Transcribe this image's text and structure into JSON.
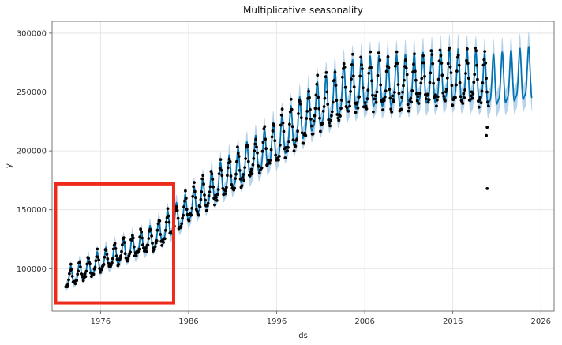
{
  "chart_data": {
    "type": "line",
    "title": "Multiplicative seasonality",
    "xlabel": "ds",
    "ylabel": "y",
    "xlim": [
      1970.5,
      2027.5
    ],
    "ylim": [
      64000,
      310000
    ],
    "x_ticks": [
      1976,
      1986,
      1996,
      2006,
      2016,
      2026
    ],
    "y_ticks": [
      100000,
      150000,
      200000,
      250000,
      300000
    ],
    "y_tick_labels": [
      "100000",
      "150000",
      "200000",
      "250000",
      "300000"
    ],
    "grid": true,
    "trend_knots": [
      [
        1972,
        90000
      ],
      [
        1976,
        105000
      ],
      [
        1982,
        125000
      ],
      [
        1986,
        150000
      ],
      [
        1990,
        175000
      ],
      [
        1996,
        205000
      ],
      [
        2000,
        232000
      ],
      [
        2004,
        250000
      ],
      [
        2006,
        254000
      ],
      [
        2010,
        255000
      ],
      [
        2014,
        258000
      ],
      [
        2016,
        260000
      ],
      [
        2019,
        258000
      ],
      [
        2020,
        255000
      ],
      [
        2025,
        262000
      ]
    ],
    "seasonal_amplitude": 0.08,
    "interval_half_width": 0.045,
    "observation_end": 2020.1,
    "forecast_end": 2025,
    "outliers": [
      [
        2019.9,
        168000
      ],
      [
        2019.8,
        213000
      ],
      [
        2019.9,
        220000
      ]
    ],
    "series": [
      {
        "name": "observations",
        "kind": "points"
      },
      {
        "name": "forecast",
        "kind": "line"
      },
      {
        "name": "uncertainty interval",
        "kind": "band"
      }
    ],
    "highlight_box": {
      "x": [
        1970.9,
        1984.3
      ],
      "y": [
        71000,
        172000
      ]
    },
    "colors": {
      "forecast_line": "#0072B2",
      "interval_fill": "#a9cbe6",
      "points": "#000000",
      "highlight": "#ee2a1b",
      "grid": "#e2e2e2",
      "axes": "#555555"
    }
  }
}
